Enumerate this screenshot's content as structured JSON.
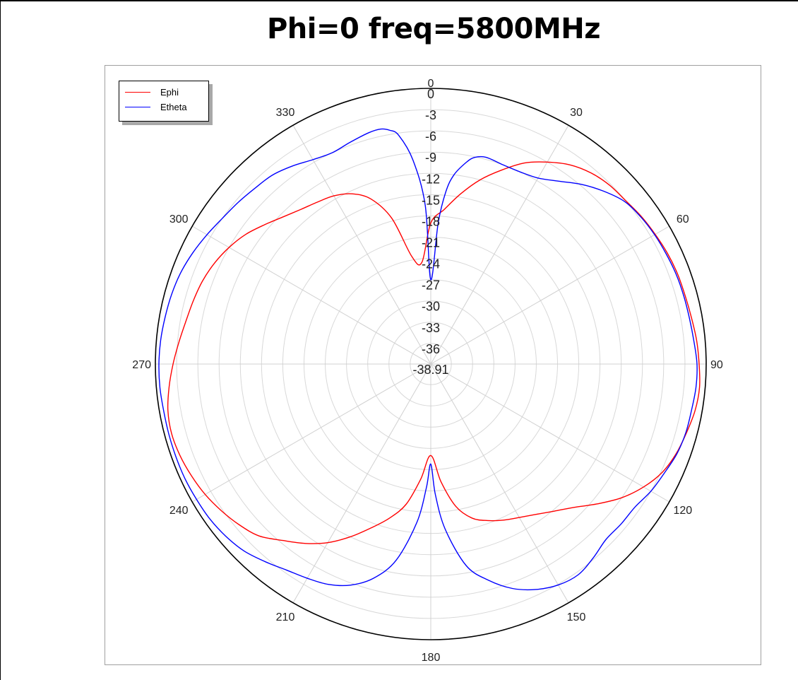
{
  "title": "Phi=0 freq=5800MHz",
  "legend": {
    "ephi_label": "Ephi",
    "etheta_label": "Etheta"
  },
  "chart_data": {
    "type": "polar",
    "title": "Phi=0 freq=5800MHz",
    "angle_unit": "deg",
    "angle_direction": "clockwise",
    "angle_zero": "top",
    "angle_tick_labels": [
      "0",
      "30",
      "60",
      "90",
      "120",
      "150",
      "180",
      "210",
      "240",
      "270",
      "300",
      "330"
    ],
    "radial_tick_labels": [
      "0",
      "-3",
      "-6",
      "-9",
      "-12",
      "-15",
      "-18",
      "-21",
      "-24",
      "-27",
      "-30",
      "-33",
      "-36",
      "-38.91"
    ],
    "rlim": [
      -38.91,
      0
    ],
    "grid": true,
    "legend_position": "top-left",
    "colors": {
      "Ephi": "#ff0000",
      "Etheta": "#0000ff"
    },
    "series": [
      {
        "name": "Ephi",
        "angle_deg": [
          0,
          5,
          10,
          15,
          20,
          25,
          30,
          35,
          40,
          45,
          50,
          55,
          60,
          65,
          70,
          75,
          80,
          85,
          90,
          95,
          100,
          105,
          110,
          115,
          120,
          125,
          130,
          135,
          140,
          145,
          150,
          155,
          160,
          165,
          170,
          175,
          180,
          185,
          190,
          195,
          200,
          205,
          210,
          215,
          220,
          225,
          230,
          235,
          240,
          245,
          250,
          255,
          260,
          265,
          270,
          275,
          280,
          285,
          290,
          295,
          300,
          305,
          310,
          315,
          320,
          325,
          330,
          335,
          340,
          345,
          350,
          355
        ],
        "values_db": [
          -19.0,
          -17.0,
          -14.5,
          -12.0,
          -9.8,
          -7.6,
          -6.0,
          -4.6,
          -3.7,
          -3.2,
          -3.0,
          -2.6,
          -2.3,
          -2.0,
          -1.8,
          -1.7,
          -1.5,
          -1.2,
          -1.0,
          -0.8,
          -1.0,
          -1.5,
          -2.0,
          -2.8,
          -4.2,
          -6.0,
          -8.2,
          -10.3,
          -11.8,
          -13.0,
          -13.9,
          -14.6,
          -15.4,
          -16.4,
          -18.5,
          -22.2,
          -26.0,
          -22.6,
          -18.8,
          -16.4,
          -14.3,
          -12.0,
          -9.8,
          -8.0,
          -6.4,
          -4.6,
          -3.6,
          -2.8,
          -2.1,
          -1.6,
          -1.2,
          -1.0,
          -1.2,
          -1.8,
          -2.5,
          -3.2,
          -3.8,
          -4.2,
          -4.6,
          -5.2,
          -6.0,
          -7.0,
          -8.3,
          -9.5,
          -10.4,
          -11.0,
          -11.5,
          -12.4,
          -14.1,
          -17.6,
          -23.5,
          -24.5
        ]
      },
      {
        "name": "Etheta",
        "angle_deg": [
          0,
          3,
          5,
          7,
          10,
          12,
          15,
          20,
          25,
          30,
          35,
          40,
          45,
          50,
          55,
          60,
          65,
          70,
          75,
          80,
          85,
          90,
          95,
          100,
          105,
          110,
          115,
          120,
          125,
          130,
          135,
          140,
          145,
          150,
          155,
          160,
          165,
          170,
          175,
          178,
          180,
          182,
          185,
          190,
          195,
          200,
          205,
          210,
          215,
          220,
          225,
          230,
          235,
          240,
          245,
          250,
          255,
          260,
          265,
          270,
          275,
          280,
          285,
          290,
          295,
          300,
          305,
          310,
          315,
          320,
          325,
          330,
          335,
          340,
          345,
          348,
          350,
          352,
          355,
          358
        ],
        "values_db": [
          -27.0,
          -19.0,
          -14.5,
          -12.0,
          -10.0,
          -9.1,
          -8.7,
          -9.0,
          -9.0,
          -8.6,
          -7.4,
          -5.8,
          -4.4,
          -3.2,
          -2.7,
          -2.4,
          -2.2,
          -2.0,
          -1.9,
          -1.8,
          -1.6,
          -1.3,
          -1.3,
          -1.5,
          -1.6,
          -1.9,
          -2.5,
          -3.0,
          -3.7,
          -3.8,
          -3.9,
          -3.2,
          -2.6,
          -2.9,
          -3.8,
          -5.2,
          -7.3,
          -10.0,
          -15.5,
          -20.5,
          -24.8,
          -21.5,
          -16.5,
          -10.8,
          -7.6,
          -5.7,
          -4.6,
          -4.0,
          -3.4,
          -2.5,
          -1.6,
          -1.1,
          -0.8,
          -0.7,
          -0.6,
          -0.6,
          -0.6,
          -0.6,
          -0.5,
          -0.5,
          -0.6,
          -0.8,
          -1.0,
          -1.3,
          -1.8,
          -2.4,
          -3.0,
          -3.4,
          -3.8,
          -4.1,
          -4.8,
          -5.6,
          -6.0,
          -5.6,
          -5.1,
          -5.0,
          -5.4,
          -6.3,
          -10.0,
          -16.5
        ]
      }
    ]
  }
}
